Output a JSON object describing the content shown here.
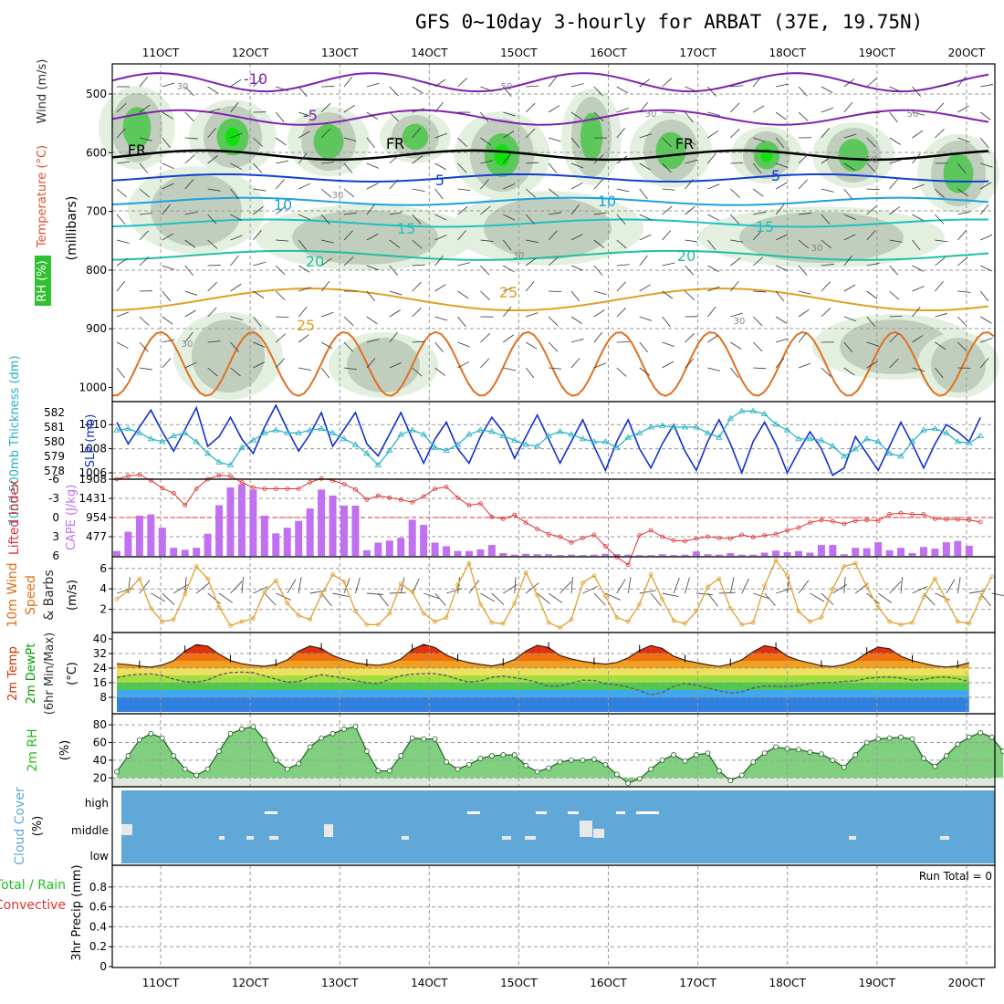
{
  "title": "GFS 0~10day 3-hourly for ARBAT (37E, 19.75N)",
  "colors": {
    "rh_band": "#30c030",
    "temp": "#e05030",
    "wind_label": "#303030",
    "thickness": "#20b0c0",
    "slp": "#1030d0",
    "lifted": "#e03030",
    "cape": "#c070f0",
    "wind10": "#e0a030",
    "barb": "#505050",
    "temp2m": "#d03000",
    "dewpt": "#00a000",
    "rh2m": "#20c020",
    "cloud": "#5fa8d8",
    "precip_total": "#20c020",
    "precip_conv": "#e03030"
  },
  "chart_data": [
    {
      "type": "contour",
      "panel": "upper-air",
      "ylabel": "(millibars)",
      "side_labels": [
        "Wind",
        "(m/s)",
        "Temperature",
        "(°C)",
        "RH",
        "(%)"
      ],
      "y_ticks": [
        500,
        600,
        700,
        800,
        900,
        1000
      ],
      "x_ticks": [
        "11OCT",
        "12OCT",
        "13OCT",
        "14OCT",
        "15OCT",
        "16OCT",
        "17OCT",
        "18OCT",
        "19OCT",
        "20OCT"
      ],
      "temp_contour_labels": [
        "-10",
        "-5",
        "FR",
        "FR",
        "FR",
        "5",
        "5",
        "10",
        "10",
        "15",
        "15",
        "20",
        "20",
        "25",
        "25"
      ],
      "rh_labels": [
        "30",
        "50",
        "30",
        "50",
        "30",
        "30",
        "30",
        "30",
        "50",
        "30"
      ]
    },
    {
      "type": "line",
      "panel": "thickness-slp",
      "left_label": "1000-500mb Thickness (dm)",
      "right_label": "SLP (mb)",
      "thickness_ticks": [
        578,
        579,
        580,
        581,
        582
      ],
      "slp_ticks": [
        1006,
        1008,
        1010
      ],
      "slp": [
        1010.2,
        1008.4,
        1009.8,
        1011.2,
        1009.4,
        1007.8,
        1009.6,
        1011.4,
        1008.2,
        1009.0,
        1010.6,
        1008.8,
        1007.6,
        1009.8,
        1011.6,
        1009.6,
        1007.8,
        1009.2,
        1011.0,
        1008.2,
        1009.6,
        1011.0,
        1008.4,
        1007.4,
        1009.2,
        1011.0,
        1008.8,
        1006.8,
        1008.8,
        1010.2,
        1008.0,
        1006.8,
        1009.0,
        1010.6,
        1009.4,
        1007.2,
        1009.0,
        1010.8,
        1008.8,
        1006.8,
        1008.6,
        1010.4,
        1008.2,
        1006.2,
        1008.6,
        1010.4,
        1008.0,
        1006.4,
        1008.4,
        1010.0,
        1007.8,
        1006.2,
        1008.6,
        1010.4,
        1008.4,
        1006.0,
        1008.6,
        1010.2,
        1008.4,
        1006.0,
        1007.8,
        1009.4,
        1008.0,
        1005.8,
        1006.4,
        1009.0,
        1007.6,
        1006.2,
        1008.2,
        1010.2,
        1008.4,
        1006.4,
        1008.4,
        1010.0,
        1009.4,
        1008.6,
        1010.6
      ],
      "thickness": [
        580.8,
        580.9,
        580.6,
        580.2,
        580.0,
        580.4,
        580.6,
        580.0,
        579.2,
        578.6,
        578.4,
        579.6,
        580.1,
        580.6,
        580.8,
        580.6,
        580.6,
        580.8,
        580.9,
        580.6,
        580.2,
        579.8,
        579.2,
        578.4,
        579.4,
        580.5,
        580.8,
        580.5,
        579.6,
        579.4,
        579.8,
        580.5,
        580.8,
        580.7,
        580.4,
        580.1,
        579.8,
        579.7,
        580.4,
        580.7,
        580.5,
        580.2,
        580.0,
        580.0,
        579.6,
        580.3,
        580.6,
        581.0,
        581.1,
        581.0,
        581.0,
        581.0,
        580.6,
        580.3,
        581.6,
        582.1,
        582.1,
        581.9,
        581.2,
        580.8,
        580.2,
        580.2,
        580.1,
        579.7,
        579.0,
        579.5,
        580.2,
        580.0,
        579.2,
        579.0,
        580.0,
        580.8,
        580.9,
        580.6,
        580.0,
        579.9,
        580.4
      ]
    },
    {
      "type": "bar",
      "panel": "cape-lifted",
      "left_label": "Lifted Index",
      "right_label": "CAPE (J/kg)",
      "lifted_ticks": [
        -6,
        -3,
        0,
        3,
        6
      ],
      "cape_ticks": [
        477,
        954,
        1431,
        1908
      ],
      "cape": [
        120,
        600,
        1000,
        1030,
        700,
        200,
        150,
        200,
        550,
        1260,
        1700,
        1780,
        1650,
        1000,
        560,
        700,
        870,
        1180,
        1650,
        1500,
        1250,
        1250,
        140,
        330,
        380,
        450,
        900,
        770,
        330,
        240,
        120,
        120,
        160,
        270,
        70,
        30,
        50,
        40,
        40,
        20,
        30,
        20,
        30,
        50,
        40,
        30,
        20,
        20,
        40,
        20,
        30,
        110,
        40,
        30,
        70,
        30,
        30,
        80,
        130,
        90,
        120,
        80,
        270,
        270,
        40,
        200,
        190,
        340,
        140,
        200,
        70,
        220,
        180,
        340,
        370,
        250,
        0
      ],
      "lifted": [
        -6,
        -6.5,
        -6.7,
        -5.8,
        -4.6,
        -3.8,
        -1.9,
        -4.5,
        -6.0,
        -6.6,
        -6.5,
        -5.5,
        -4.7,
        -4.5,
        -4.5,
        -4.5,
        -4.5,
        -5.5,
        -6.1,
        -5.8,
        -5.2,
        -4.4,
        -2.8,
        -3.4,
        -3.1,
        -2.8,
        -2.4,
        -3.3,
        -4.5,
        -4.8,
        -3.1,
        -1.9,
        -2.2,
        -0.1,
        0.2,
        -0.4,
        0.8,
        1.8,
        2.6,
        3.0,
        3.9,
        3.2,
        2.7,
        4.5,
        6.2,
        7.4,
        2.8,
        2.0,
        3.0,
        3.6,
        3.7,
        3.3,
        3.0,
        3.2,
        3.3,
        2.7,
        3.1,
        2.8,
        2.6,
        2.0,
        1.6,
        0.8,
        0.4,
        0.6,
        1.0,
        0.5,
        0.4,
        0.5,
        -0.5,
        -0.7,
        -0.5,
        -0.5,
        0.2,
        0.3,
        0.3,
        0.4,
        0.7
      ]
    },
    {
      "type": "line",
      "panel": "wind10m",
      "left_label": "10m Wind Speed & Barbs",
      "unit": "(m/s)",
      "y_ticks": [
        2,
        4,
        6
      ],
      "wind10": [
        3.0,
        3.8,
        5.0,
        2.1,
        0.8,
        1.0,
        3.5,
        6.2,
        5.0,
        2.2,
        0.4,
        0.8,
        1.1,
        3.7,
        4.8,
        2.6,
        1.4,
        1.0,
        3.4,
        5.4,
        4.7,
        1.8,
        0.5,
        0.5,
        1.6,
        4.5,
        3.7,
        1.6,
        0.8,
        1.2,
        4.4,
        6.5,
        2.5,
        0.7,
        0.6,
        2.6,
        5.6,
        3.4,
        0.7,
        0.2,
        1.0,
        4.6,
        5.3,
        3.3,
        1.2,
        0.8,
        2.5,
        5.4,
        3.0,
        0.9,
        0.6,
        1.8,
        4.2,
        5.0,
        2.1,
        0.5,
        0.7,
        4.3,
        6.8,
        5.3,
        1.8,
        0.8,
        1.2,
        4.0,
        6.2,
        6.5,
        4.2,
        2.2,
        0.8,
        0.5,
        0.7,
        3.2,
        5.0,
        2.9,
        0.8,
        0.6,
        3.1,
        5.2
      ]
    },
    {
      "type": "area",
      "panel": "temp2m",
      "left_label": "2m Temp 2m DewPt (6hr Min/Max)",
      "unit": "(°C)",
      "y_ticks": [
        8,
        16,
        24,
        32,
        40
      ],
      "temp": [
        26.4,
        25.9,
        25.1,
        24.5,
        25.7,
        28.0,
        33.4,
        36.9,
        36.0,
        31.6,
        28.1,
        26.4,
        25.5,
        25.0,
        26.0,
        28.5,
        33.3,
        36.1,
        34.7,
        30.9,
        28.6,
        26.9,
        26.0,
        25.6,
        26.6,
        29.0,
        34.2,
        37.0,
        35.3,
        31.1,
        28.6,
        27.0,
        26.0,
        25.2,
        26.3,
        28.7,
        33.4,
        36.5,
        35.3,
        30.9,
        29.0,
        27.7,
        26.8,
        26.2,
        27.1,
        29.6,
        33.7,
        36.4,
        34.8,
        30.5,
        28.3,
        27.0,
        25.8,
        24.9,
        26.2,
        28.5,
        33.0,
        36.3,
        35.1,
        30.5,
        28.3,
        26.8,
        25.3,
        24.8,
        25.9,
        28.0,
        32.4,
        35.5,
        34.6,
        30.5,
        28.1,
        26.6,
        25.2,
        24.6,
        25.2,
        27.0
      ],
      "dewpt": [
        18.7,
        20.1,
        20.6,
        20.8,
        19.9,
        18.0,
        16.6,
        16.3,
        17.5,
        20.2,
        21.6,
        21.8,
        21.5,
        19.7,
        17.9,
        16.3,
        16.6,
        18.9,
        20.4,
        19.5,
        18.4,
        17.2,
        15.9,
        15.5,
        17.8,
        19.8,
        20.7,
        20.9,
        21.0,
        19.9,
        17.9,
        16.3,
        17.0,
        18.9,
        19.6,
        18.7,
        17.8,
        16.1,
        14.0,
        14.2,
        15.8,
        17.4,
        17.2,
        15.5,
        14.9,
        13.6,
        11.7,
        9.4,
        10.6,
        14.0,
        15.6,
        14.7,
        13.1,
        11.6,
        10.3,
        11.0,
        13.1,
        14.2,
        14.0,
        13.9,
        14.3,
        15.6,
        16.0,
        16.1,
        16.7,
        17.0,
        18.4,
        18.9,
        19.1,
        18.6,
        17.4,
        17.8,
        18.9,
        19.1,
        18.2,
        16.5
      ]
    },
    {
      "type": "area",
      "panel": "rh2m",
      "left_label": "2m RH",
      "unit": "(%)",
      "y_ticks": [
        20,
        40,
        60,
        80
      ],
      "rh": [
        27,
        45,
        63,
        70,
        65,
        45,
        30,
        23,
        30,
        50,
        70,
        75,
        78,
        63,
        40,
        30,
        36,
        55,
        65,
        70,
        75,
        78,
        50,
        28,
        28,
        45,
        65,
        64,
        64,
        38,
        30,
        35,
        42,
        45,
        46,
        46,
        34,
        27,
        31,
        38,
        40,
        40,
        41,
        35,
        24,
        14,
        19,
        30,
        40,
        46,
        39,
        46,
        48,
        28,
        17,
        23,
        38,
        48,
        55,
        53,
        52,
        49,
        47,
        40,
        32,
        46,
        60,
        64,
        65,
        66,
        64,
        42,
        33,
        45,
        58,
        66,
        71,
        66,
        50
      ]
    },
    {
      "type": "heatmap",
      "panel": "cloud",
      "left_label": "Cloud Cover",
      "unit": "(%)",
      "levels": [
        "high",
        "middle",
        "low"
      ]
    },
    {
      "type": "bar",
      "panel": "precip",
      "left_label": "Total / Rain Convective 3hr Precip",
      "unit": "(mm)",
      "y_ticks": [
        0,
        0.2,
        0.4,
        0.6,
        0.8
      ],
      "run_total": "Run Total = 0",
      "precip": []
    }
  ]
}
